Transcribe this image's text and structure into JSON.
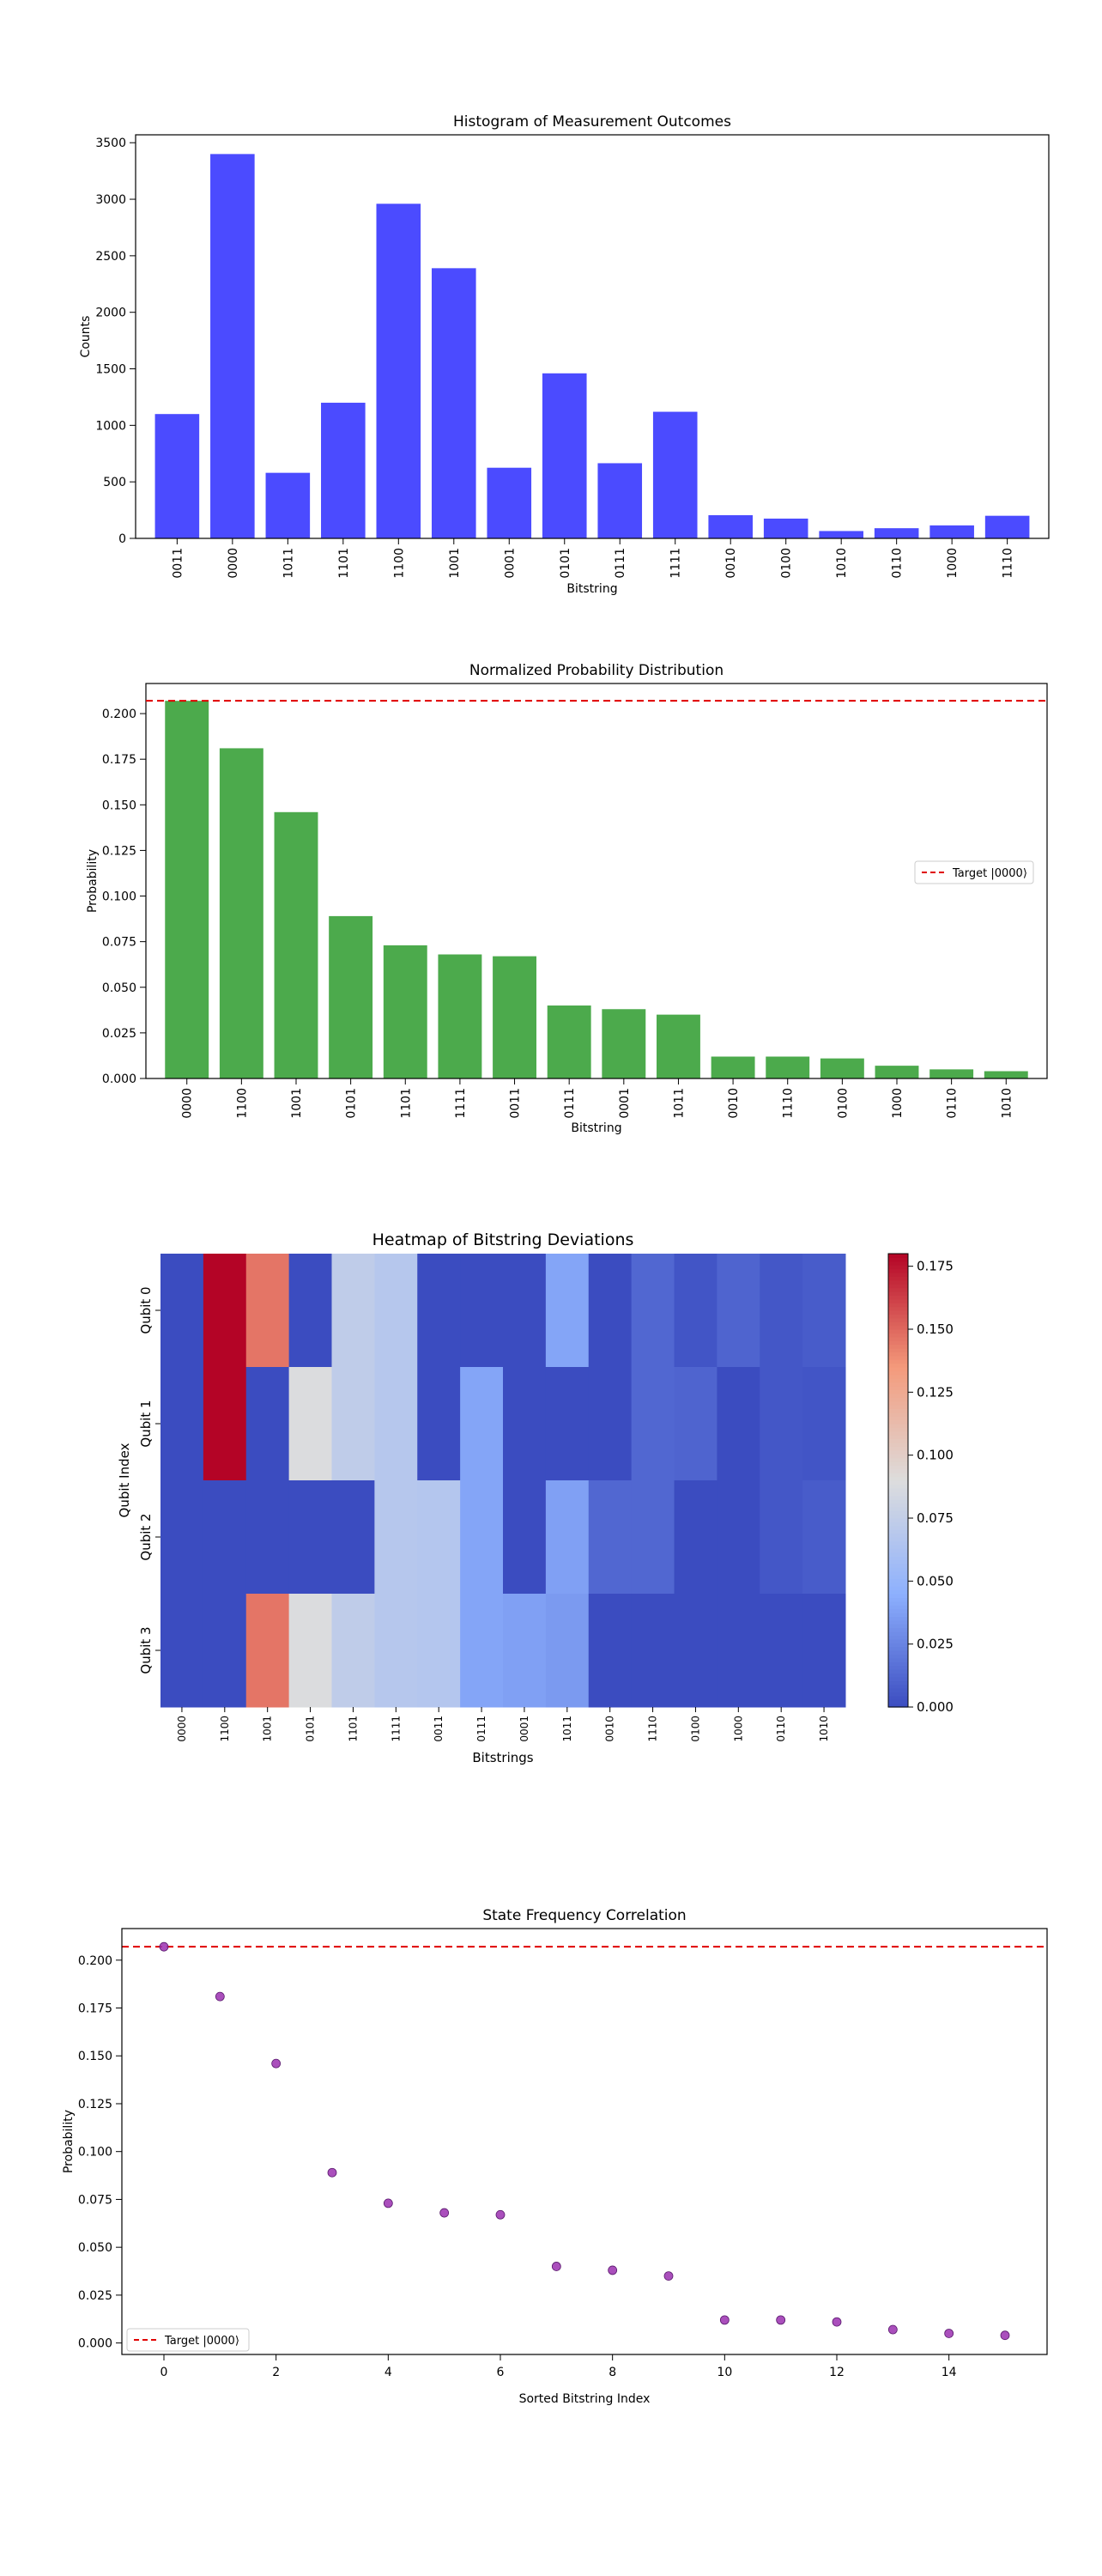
{
  "chart_data": [
    {
      "type": "bar",
      "title": "Histogram of Measurement Outcomes",
      "xlabel": "Bitstring",
      "ylabel": "Counts",
      "ylim": [
        0,
        3570
      ],
      "yticks": [
        0,
        500,
        1000,
        1500,
        2000,
        2500,
        3000,
        3500
      ],
      "color": "#4b4bff",
      "categories": [
        "0011",
        "0000",
        "1011",
        "1101",
        "1100",
        "1001",
        "0001",
        "0101",
        "0111",
        "1111",
        "0010",
        "0100",
        "1010",
        "0110",
        "1000",
        "1110"
      ],
      "values": [
        1100,
        3400,
        580,
        1200,
        2960,
        2390,
        625,
        1460,
        665,
        1120,
        205,
        175,
        65,
        90,
        115,
        200
      ]
    },
    {
      "type": "bar",
      "title": "Normalized Probability Distribution",
      "xlabel": "Bitstring",
      "ylabel": "Probability",
      "ylim": [
        0,
        0.2165
      ],
      "yticks": [
        "0.000",
        "0.025",
        "0.050",
        "0.075",
        "0.100",
        "0.125",
        "0.150",
        "0.175",
        "0.200"
      ],
      "color": "#4caa4c",
      "categories": [
        "0000",
        "1100",
        "1001",
        "0101",
        "1101",
        "1111",
        "0011",
        "0111",
        "0001",
        "1011",
        "0010",
        "1110",
        "0100",
        "1000",
        "0110",
        "1010"
      ],
      "values": [
        0.207,
        0.181,
        0.146,
        0.089,
        0.073,
        0.068,
        0.067,
        0.04,
        0.038,
        0.035,
        0.012,
        0.012,
        0.011,
        0.007,
        0.005,
        0.004
      ],
      "reference_line": {
        "y": 0.207,
        "color": "#e00000",
        "style": "dashed"
      },
      "legend": {
        "label": "Target |0000⟩",
        "placement": "center-right"
      }
    },
    {
      "type": "heatmap",
      "title": "Heatmap of Bitstring Deviations",
      "xlabel": "Bitstrings",
      "ylabel": "Qubit Index",
      "colormap": "coolwarm",
      "vmin": 0,
      "vmax": 0.18,
      "colorbar_ticks": [
        "0.000",
        "0.025",
        "0.050",
        "0.075",
        "0.100",
        "0.125",
        "0.150",
        "0.175"
      ],
      "x_categories": [
        "0000",
        "1100",
        "1001",
        "0101",
        "1101",
        "1111",
        "0011",
        "0111",
        "0001",
        "1011",
        "0010",
        "1110",
        "0100",
        "1000",
        "0110",
        "1010"
      ],
      "y_categories": [
        "Qubit 0",
        "Qubit 1",
        "Qubit 2",
        "Qubit 3"
      ],
      "values": [
        [
          0.0,
          0.181,
          0.146,
          0.0,
          0.073,
          0.068,
          0.0,
          0.0,
          0.0,
          0.04,
          0.0,
          0.012,
          0.004,
          0.011,
          0.005,
          0.007
        ],
        [
          0.0,
          0.181,
          0.0,
          0.089,
          0.073,
          0.068,
          0.0,
          0.04,
          0.0,
          0.0,
          0.0,
          0.012,
          0.011,
          0.0,
          0.005,
          0.004
        ],
        [
          0.0,
          0.0,
          0.0,
          0.0,
          0.0,
          0.068,
          0.067,
          0.04,
          0.0,
          0.038,
          0.012,
          0.012,
          0.0,
          0.0,
          0.005,
          0.007
        ],
        [
          0.0,
          0.0,
          0.146,
          0.089,
          0.073,
          0.068,
          0.067,
          0.04,
          0.038,
          0.035,
          0.0,
          0.0,
          0.0,
          0.0,
          0.0,
          0.0
        ]
      ]
    },
    {
      "type": "scatter",
      "title": "State Frequency Correlation",
      "xlabel": "Sorted Bitstring Index",
      "ylabel": "Probability",
      "xlim": [
        -0.75,
        15.75
      ],
      "ylim": [
        -0.006,
        0.2165
      ],
      "xticks": [
        0,
        2,
        4,
        6,
        8,
        10,
        12,
        14
      ],
      "yticks": [
        "0.000",
        "0.025",
        "0.050",
        "0.075",
        "0.100",
        "0.125",
        "0.150",
        "0.175",
        "0.200"
      ],
      "color": "#9b30b0",
      "x": [
        0,
        1,
        2,
        3,
        4,
        5,
        6,
        7,
        8,
        9,
        10,
        11,
        12,
        13,
        14,
        15
      ],
      "y": [
        0.207,
        0.181,
        0.146,
        0.089,
        0.073,
        0.068,
        0.067,
        0.04,
        0.038,
        0.035,
        0.012,
        0.012,
        0.011,
        0.007,
        0.005,
        0.004
      ],
      "reference_line": {
        "y": 0.207,
        "color": "#e00000",
        "style": "dashed"
      },
      "legend": {
        "label": "Target |0000⟩",
        "placement": "lower-left"
      }
    }
  ]
}
